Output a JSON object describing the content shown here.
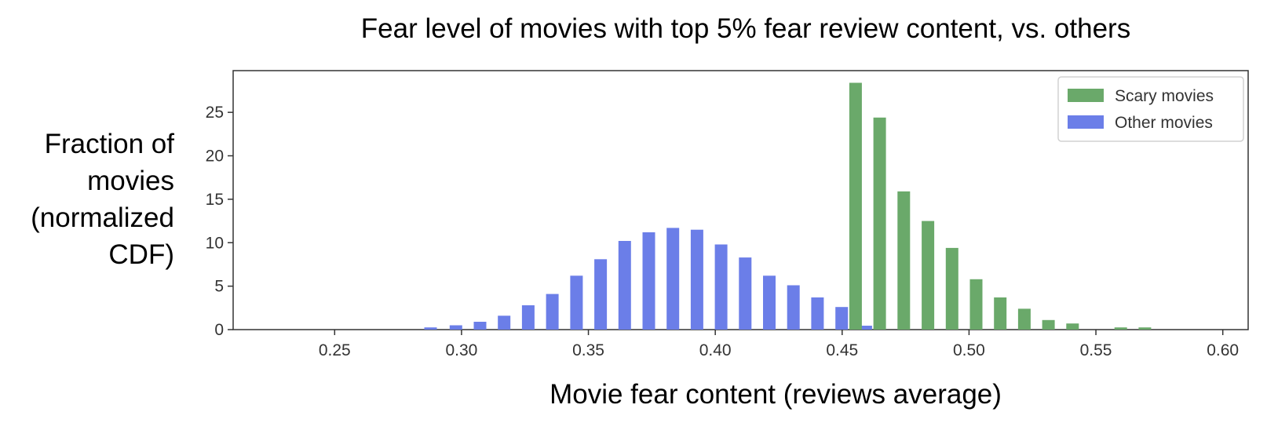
{
  "chart_data": {
    "type": "bar",
    "title": "Fear level of movies with top 5% fear review content, vs. others",
    "xlabel": "Movie fear content (reviews average)",
    "ylabel": "Fraction of movies (normalized CDF)",
    "ylabel_lines": [
      "Fraction of",
      "movies",
      "(normalized",
      "CDF)"
    ],
    "xlim": [
      0.21,
      0.61
    ],
    "ylim": [
      0,
      29.8
    ],
    "xticks": [
      0.25,
      0.3,
      0.35,
      0.4,
      0.45,
      0.5,
      0.55,
      0.6
    ],
    "xtick_labels": [
      "0.25",
      "0.30",
      "0.35",
      "0.40",
      "0.45",
      "0.50",
      "0.55",
      "0.60"
    ],
    "yticks": [
      0,
      5,
      10,
      15,
      20,
      25
    ],
    "ytick_labels": [
      "0",
      "5",
      "10",
      "15",
      "20",
      "25"
    ],
    "grid": false,
    "legend_position": "top-right",
    "series": [
      {
        "name": "Scary movies",
        "color": "#6aa96a",
        "x": [
          0.4553,
          0.4648,
          0.4743,
          0.4838,
          0.4933,
          0.5028,
          0.5123,
          0.5218,
          0.5313,
          0.5408,
          0.5598,
          0.5693
        ],
        "values": [
          28.4,
          24.4,
          15.9,
          12.5,
          9.4,
          5.8,
          3.7,
          2.4,
          1.1,
          0.7,
          0.25,
          0.25
        ]
      },
      {
        "name": "Other movies",
        "color": "#6b7ee8",
        "x": [
          0.2878,
          0.2978,
          0.3073,
          0.3168,
          0.3263,
          0.3358,
          0.3453,
          0.3548,
          0.3643,
          0.3738,
          0.3833,
          0.3928,
          0.4023,
          0.4118,
          0.4213,
          0.4308,
          0.4403,
          0.4498,
          0.4593
        ],
        "values": [
          0.25,
          0.5,
          0.9,
          1.6,
          2.8,
          4.1,
          6.2,
          8.1,
          10.2,
          11.2,
          11.7,
          11.5,
          9.8,
          8.3,
          6.2,
          5.1,
          3.7,
          2.6,
          0.45
        ]
      }
    ]
  }
}
